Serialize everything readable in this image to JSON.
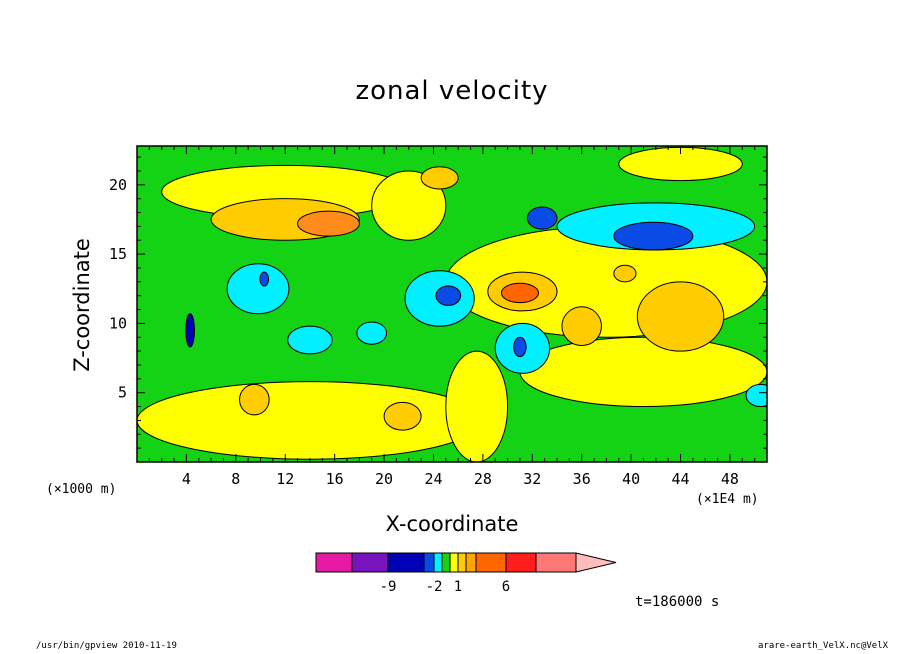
{
  "chart_data": {
    "type": "heatmap",
    "title": "zonal velocity",
    "xlabel": "X-coordinate",
    "ylabel": "Z-coordinate",
    "x_unit_left": "(×1000 m)",
    "x_unit_right": "(×1E4 m)",
    "time_label": "t=186000 s",
    "xlim": [
      0,
      51
    ],
    "ylim": [
      0,
      22.8
    ],
    "xticks": [
      4,
      8,
      12,
      16,
      20,
      24,
      28,
      32,
      36,
      40,
      44,
      48
    ],
    "yticks": [
      5,
      10,
      15,
      20
    ],
    "xtick_labels": [
      "4",
      "8",
      "12",
      "16",
      "20",
      "24",
      "28",
      "32",
      "36",
      "40",
      "44",
      "48"
    ],
    "ytick_labels": [
      "5",
      "10",
      "15",
      "20"
    ],
    "background_level_color": "#14d214",
    "regions": [
      {
        "color": "#ffff00",
        "shape": "ellipse",
        "center": [
          12,
          19.5
        ],
        "radii": [
          10,
          1.9
        ]
      },
      {
        "color": "#ffff00",
        "shape": "ellipse",
        "center": [
          38,
          13
        ],
        "radii": [
          13,
          4
        ]
      },
      {
        "color": "#ffff00",
        "shape": "ellipse",
        "center": [
          14,
          3
        ],
        "radii": [
          14,
          2.8
        ]
      },
      {
        "color": "#ffff00",
        "shape": "ellipse",
        "center": [
          41,
          6.5
        ],
        "radii": [
          10,
          2.5
        ]
      },
      {
        "color": "#ffff00",
        "shape": "ellipse",
        "center": [
          27.5,
          4
        ],
        "radii": [
          2.5,
          4
        ]
      },
      {
        "color": "#ffff00",
        "shape": "ellipse",
        "center": [
          22,
          18.5
        ],
        "radii": [
          3,
          2.5
        ]
      },
      {
        "color": "#ffff00",
        "shape": "ellipse",
        "center": [
          44,
          21.5
        ],
        "radii": [
          5,
          1.2
        ]
      },
      {
        "color": "#ffcc00",
        "shape": "ellipse",
        "center": [
          12,
          17.5
        ],
        "radii": [
          6,
          1.5
        ]
      },
      {
        "color": "#ff8c1a",
        "shape": "ellipse",
        "center": [
          15.5,
          17.2
        ],
        "radii": [
          2.5,
          0.9
        ]
      },
      {
        "color": "#ffcc00",
        "shape": "ellipse",
        "center": [
          44,
          10.5
        ],
        "radii": [
          3.5,
          2.5
        ]
      },
      {
        "color": "#ffcc00",
        "shape": "ellipse",
        "center": [
          36,
          9.8
        ],
        "radii": [
          1.6,
          1.4
        ]
      },
      {
        "color": "#ffcc00",
        "shape": "ellipse",
        "center": [
          39.5,
          13.6
        ],
        "radii": [
          0.9,
          0.6
        ]
      },
      {
        "color": "#ffcc00",
        "shape": "ellipse",
        "center": [
          9.5,
          4.5
        ],
        "radii": [
          1.2,
          1.1
        ]
      },
      {
        "color": "#ffcc00",
        "shape": "ellipse",
        "center": [
          21.5,
          3.3
        ],
        "radii": [
          1.5,
          1.0
        ]
      },
      {
        "color": "#ffcc00",
        "shape": "ellipse",
        "center": [
          31.2,
          12.3
        ],
        "radii": [
          2.8,
          1.4
        ]
      },
      {
        "color": "#ff6600",
        "shape": "ellipse",
        "center": [
          31,
          12.2
        ],
        "radii": [
          1.5,
          0.7
        ]
      },
      {
        "color": "#ffcc00",
        "shape": "ellipse",
        "center": [
          24.5,
          20.5
        ],
        "radii": [
          1.5,
          0.8
        ]
      },
      {
        "color": "#00f0ff",
        "shape": "ellipse",
        "center": [
          9.8,
          12.5
        ],
        "radii": [
          2.5,
          1.8
        ]
      },
      {
        "color": "#00f0ff",
        "shape": "ellipse",
        "center": [
          14,
          8.8
        ],
        "radii": [
          1.8,
          1.0
        ]
      },
      {
        "color": "#00f0ff",
        "shape": "ellipse",
        "center": [
          19,
          9.3
        ],
        "radii": [
          1.2,
          0.8
        ]
      },
      {
        "color": "#00f0ff",
        "shape": "ellipse",
        "center": [
          24.5,
          11.8
        ],
        "radii": [
          2.8,
          2.0
        ]
      },
      {
        "color": "#0a4be6",
        "shape": "ellipse",
        "center": [
          25.2,
          12
        ],
        "radii": [
          1.0,
          0.7
        ]
      },
      {
        "color": "#00f0ff",
        "shape": "ellipse",
        "center": [
          42,
          17
        ],
        "radii": [
          8,
          1.7
        ]
      },
      {
        "color": "#0a4be6",
        "shape": "ellipse",
        "center": [
          41.8,
          16.3
        ],
        "radii": [
          3.2,
          1.0
        ]
      },
      {
        "color": "#0a4be6",
        "shape": "ellipse",
        "center": [
          32.8,
          17.6
        ],
        "radii": [
          1.2,
          0.8
        ]
      },
      {
        "color": "#00f0ff",
        "shape": "ellipse",
        "center": [
          31.2,
          8.2
        ],
        "radii": [
          2.2,
          1.8
        ]
      },
      {
        "color": "#0a4be6",
        "shape": "ellipse",
        "center": [
          31,
          8.3
        ],
        "radii": [
          0.5,
          0.7
        ]
      },
      {
        "color": "#00f0ff",
        "shape": "ellipse",
        "center": [
          50.5,
          4.8
        ],
        "radii": [
          1.2,
          0.8
        ]
      },
      {
        "color": "#0000b4",
        "shape": "ellipse",
        "center": [
          4.3,
          9.5
        ],
        "radii": [
          0.35,
          1.2
        ]
      },
      {
        "color": "#0a4be6",
        "shape": "ellipse",
        "center": [
          10.3,
          13.2
        ],
        "radii": [
          0.35,
          0.5
        ]
      }
    ],
    "colorbar": {
      "colors": [
        "#e619a5",
        "#7814be",
        "#0000b4",
        "#0a4be6",
        "#00f0ff",
        "#14d214",
        "#ffff00",
        "#ffcc00",
        "#ffa500",
        "#ff6600",
        "#ff1e1e",
        "#ff7878",
        "#ffbebe"
      ],
      "labels": [
        "-9",
        "-2",
        "1",
        "6"
      ],
      "label_after_segment": [
        1,
        3,
        6,
        9
      ]
    }
  },
  "footer": {
    "left": "/usr/bin/gpview   2010-11-19",
    "right": "arare-earth_VelX.nc@VelX"
  }
}
